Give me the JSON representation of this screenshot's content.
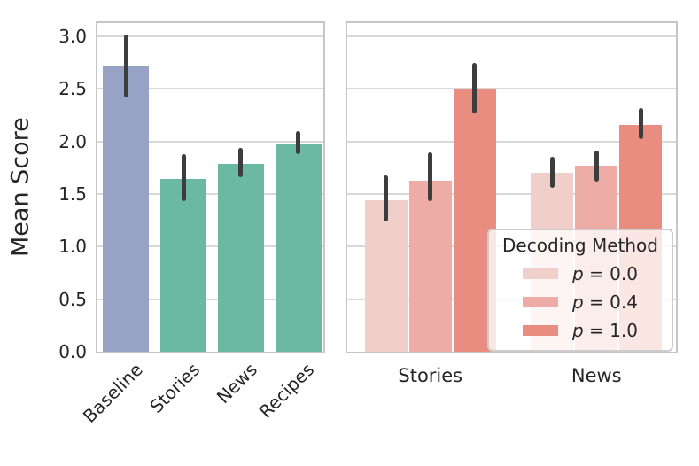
{
  "colors": {
    "background": "#ffffff",
    "grid": "#d8d8d8",
    "spine": "#c6c6c6",
    "text": "#262626",
    "error_bar": "#3d3d3d",
    "baseline_blue": "#96a3c4",
    "category_green": "#6bb9a0",
    "p0_light_pink": "#f0cfca",
    "p04_medium_pink": "#eeaca6",
    "p1_salmon": "#e88d80"
  },
  "chart_data": [
    {
      "type": "bar",
      "panel": "left",
      "title": "",
      "xlabel": "",
      "ylabel": "Mean Score",
      "categories": [
        "Baseline",
        "Stories",
        "News",
        "Recipes"
      ],
      "values": [
        2.72,
        1.64,
        1.79,
        1.98
      ],
      "error_low": [
        2.42,
        1.43,
        1.66,
        1.88
      ],
      "error_high": [
        3.02,
        1.88,
        1.94,
        2.1
      ],
      "bar_colors": [
        "#96a3c4",
        "#6bb9a0",
        "#6bb9a0",
        "#6bb9a0"
      ],
      "ylim": [
        0,
        3.16
      ],
      "yticks": [
        0.0,
        0.5,
        1.0,
        1.5,
        2.0,
        2.5,
        3.0
      ],
      "grid": true,
      "xtick_rotation_deg": 45
    },
    {
      "type": "bar",
      "panel": "right",
      "title": "",
      "xlabel": "",
      "ylabel": "",
      "categories": [
        "Stories",
        "News"
      ],
      "series": [
        {
          "name": "p = 0.0",
          "color": "#f0cfca",
          "values": [
            1.44,
            1.7
          ],
          "error_low": [
            1.24,
            1.56
          ],
          "error_high": [
            1.68,
            1.85
          ]
        },
        {
          "name": "p = 0.4",
          "color": "#eeaca6",
          "values": [
            1.63,
            1.77
          ],
          "error_low": [
            1.43,
            1.62
          ],
          "error_high": [
            1.9,
            1.91
          ]
        },
        {
          "name": "p = 1.0",
          "color": "#e88d80",
          "values": [
            2.5,
            2.16
          ],
          "error_low": [
            2.27,
            2.02
          ],
          "error_high": [
            2.75,
            2.32
          ]
        }
      ],
      "ylim": [
        0,
        3.16
      ],
      "yticks": [
        0.0,
        0.5,
        1.0,
        1.5,
        2.0,
        2.5,
        3.0
      ],
      "grid": true,
      "xtick_rotation_deg": 0,
      "legend": {
        "title": "Decoding Method",
        "entries": [
          "p = 0.0",
          "p = 0.4",
          "p = 1.0"
        ],
        "position": "lower right"
      }
    }
  ]
}
